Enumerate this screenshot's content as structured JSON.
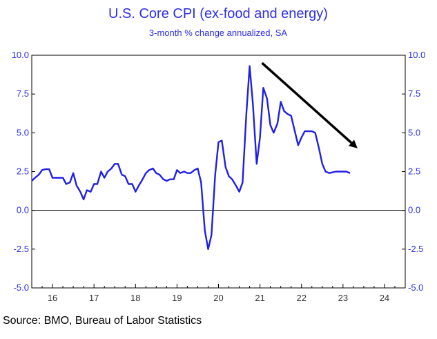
{
  "chart_data": {
    "type": "line",
    "title": "U.S. Core CPI (ex-food and energy)",
    "subtitle": "3-month % change annualized, SA",
    "source": "Source: BMO, Bureau of Labor Statistics",
    "ylim": [
      -5.0,
      10.0
    ],
    "yticks": [
      "10.0",
      "7.5",
      "5.0",
      "2.5",
      "0.0",
      "-2.5",
      "-5.0"
    ],
    "xlim": [
      2015.5,
      2024.5
    ],
    "xticks": [
      "16",
      "17",
      "18",
      "19",
      "20",
      "21",
      "22",
      "23",
      "24"
    ],
    "colors": {
      "series": "#1f1fe6",
      "axis_text": "#2e2ee6",
      "zero_line": "#000000",
      "arrow": "#000000"
    },
    "series": [
      {
        "x": [
          2015.5,
          2015.58,
          2015.67,
          2015.75,
          2015.83,
          2015.92,
          2016.0,
          2016.08,
          2016.17,
          2016.25,
          2016.33,
          2016.42,
          2016.5,
          2016.58,
          2016.67,
          2016.75,
          2016.83,
          2016.92,
          2017.0,
          2017.08,
          2017.17,
          2017.25,
          2017.33,
          2017.42,
          2017.5,
          2017.58,
          2017.67,
          2017.75,
          2017.83,
          2017.92,
          2018.0,
          2018.08,
          2018.17,
          2018.25,
          2018.33,
          2018.42,
          2018.5,
          2018.58,
          2018.67,
          2018.75,
          2018.83,
          2018.92,
          2019.0,
          2019.08,
          2019.17,
          2019.25,
          2019.33,
          2019.42,
          2019.5,
          2019.58,
          2019.67,
          2019.75,
          2019.83,
          2019.92,
          2020.0,
          2020.08,
          2020.17,
          2020.25,
          2020.33,
          2020.42,
          2020.5,
          2020.58,
          2020.67,
          2020.75,
          2020.83,
          2020.92,
          2021.0,
          2021.08,
          2021.17,
          2021.25,
          2021.33,
          2021.42,
          2021.5,
          2021.58,
          2021.67,
          2021.75,
          2021.83,
          2021.92,
          2022.0,
          2022.08,
          2022.17,
          2022.25,
          2022.33,
          2022.42,
          2022.5,
          2022.58,
          2022.67,
          2022.75,
          2022.83,
          2022.92,
          2023.0,
          2023.08,
          2023.17
        ],
        "values": [
          1.9,
          2.1,
          2.3,
          2.6,
          2.65,
          2.65,
          2.1,
          2.1,
          2.1,
          2.1,
          1.7,
          1.8,
          2.4,
          1.6,
          1.2,
          0.7,
          1.3,
          1.2,
          1.7,
          1.7,
          2.5,
          2.1,
          2.5,
          2.7,
          3.0,
          3.0,
          2.3,
          2.2,
          1.7,
          1.7,
          1.2,
          1.6,
          2.0,
          2.4,
          2.6,
          2.7,
          2.4,
          2.3,
          2.0,
          1.9,
          2.0,
          2.0,
          2.6,
          2.4,
          2.5,
          2.4,
          2.4,
          2.6,
          2.7,
          1.8,
          -1.3,
          -2.5,
          -1.6,
          2.3,
          4.4,
          4.5,
          2.8,
          2.2,
          2.0,
          1.6,
          1.2,
          1.8,
          6.2,
          9.3,
          6.8,
          3.0,
          4.7,
          7.9,
          7.2,
          5.5,
          5.0,
          5.6,
          7.0,
          6.4,
          6.2,
          6.1,
          5.2,
          4.2,
          4.7,
          5.1,
          5.1,
          5.1,
          5.0,
          4.0,
          3.0,
          2.5,
          2.4,
          2.45,
          2.5,
          2.5,
          2.5,
          2.5,
          2.4
        ]
      }
    ],
    "trend_arrow": {
      "from": [
        2021.05,
        9.5
      ],
      "to": [
        2023.35,
        4.0
      ]
    }
  }
}
